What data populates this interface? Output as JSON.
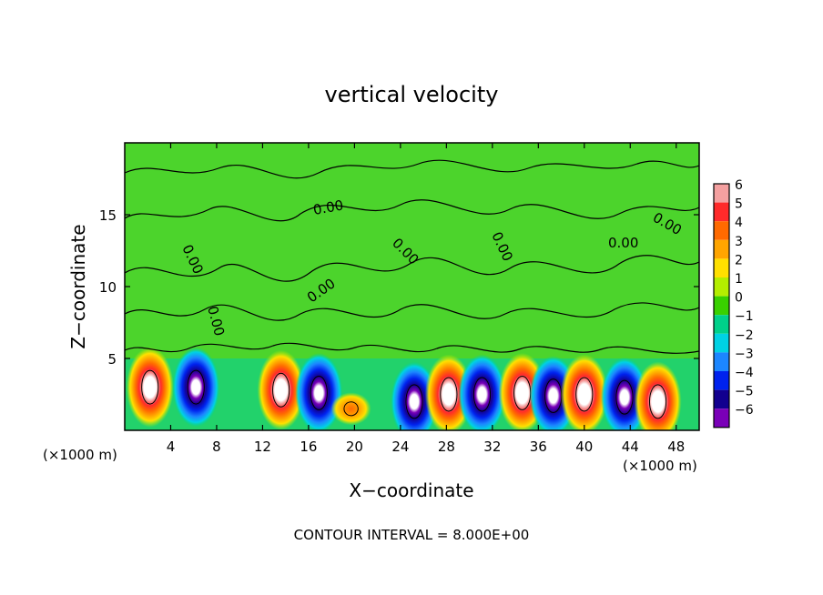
{
  "chart_data": {
    "type": "heatmap",
    "title": "vertical velocity",
    "xlabel": "X−coordinate",
    "ylabel": "Z−coordinate",
    "x_unit_label": "(×1000 m)",
    "y_unit_label": "(×1000 m)",
    "footer": "CONTOUR INTERVAL = 8.000E+00",
    "contour_label": "0.00",
    "xlim": [
      0,
      50
    ],
    "ylim": [
      0,
      20
    ],
    "x_ticks": [
      4,
      8,
      12,
      16,
      20,
      24,
      28,
      32,
      36,
      40,
      44,
      48
    ],
    "x_tick_labels": [
      "4",
      "8",
      "12",
      "16",
      "20",
      "24",
      "28",
      "32",
      "36",
      "40",
      "44",
      "48"
    ],
    "y_ticks": [
      5,
      10,
      15
    ],
    "y_tick_labels": [
      "5",
      "10",
      "15"
    ],
    "colorbar": {
      "levels": [
        6,
        5,
        4,
        3,
        2,
        1,
        0,
        -1,
        -2,
        -3,
        -4,
        -5,
        -6
      ],
      "labels": [
        "6",
        "5",
        "4",
        "3",
        "2",
        "1",
        "0",
        "−1",
        "−2",
        "−3",
        "−4",
        "−5",
        "−6"
      ],
      "colors": [
        "#f4a0a0",
        "#ff2a2a",
        "#ff6a00",
        "#ffa500",
        "#ffe000",
        "#b4ee00",
        "#39d100",
        "#00d18a",
        "#00d2e4",
        "#1c86ff",
        "#0022ee",
        "#12008f",
        "#7a00b8"
      ]
    },
    "background_color": "#4cd42c",
    "cells": [
      {
        "x": 2.2,
        "z": 3.0,
        "w": 9,
        "kind": "up"
      },
      {
        "x": 6.2,
        "z": 3.0,
        "w": -8,
        "kind": "down"
      },
      {
        "x": 13.6,
        "z": 2.8,
        "w": 10,
        "kind": "up"
      },
      {
        "x": 16.9,
        "z": 2.6,
        "w": -9,
        "kind": "down"
      },
      {
        "x": 19.7,
        "z": 1.5,
        "w": 3,
        "kind": "weak-up"
      },
      {
        "x": 25.2,
        "z": 2.0,
        "w": -7,
        "kind": "down"
      },
      {
        "x": 28.2,
        "z": 2.5,
        "w": 8,
        "kind": "up"
      },
      {
        "x": 31.1,
        "z": 2.5,
        "w": -8,
        "kind": "down"
      },
      {
        "x": 34.6,
        "z": 2.6,
        "w": 9,
        "kind": "up"
      },
      {
        "x": 37.3,
        "z": 2.4,
        "w": -8,
        "kind": "down"
      },
      {
        "x": 40.0,
        "z": 2.5,
        "w": 9,
        "kind": "up"
      },
      {
        "x": 43.5,
        "z": 2.3,
        "w": -7,
        "kind": "down"
      },
      {
        "x": 46.4,
        "z": 2.0,
        "w": 5,
        "kind": "up"
      }
    ]
  }
}
